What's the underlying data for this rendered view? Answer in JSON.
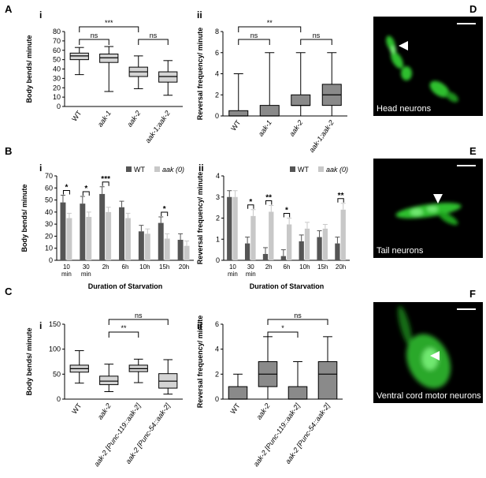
{
  "panels": {
    "A": "A",
    "B": "B",
    "C": "C",
    "D": "D",
    "E": "E",
    "F": "F",
    "i": "i",
    "ii": "ii"
  },
  "colors": {
    "wt": "#555555",
    "aak": "#c8c8c8",
    "box_light": "#d4d4d4",
    "box_dark": "#8a8a8a",
    "neuron": "#32c832"
  },
  "micro": {
    "D": {
      "label": "Head neurons"
    },
    "E": {
      "label": "Tail neurons"
    },
    "F": {
      "label": "Ventral cord motor neurons"
    }
  },
  "chart_data": [
    {
      "id": "Ai",
      "type": "box",
      "ylabel": "Body bends/ minute",
      "ylim": [
        0,
        80
      ],
      "yticks": [
        0,
        10,
        20,
        30,
        40,
        50,
        60,
        70,
        80
      ],
      "categories": [
        "WT",
        "aak-1",
        "aak-2",
        "aak-1;aak-2"
      ],
      "boxes": [
        {
          "min": 34,
          "q1": 50,
          "median": 54,
          "q3": 57,
          "max": 63
        },
        {
          "min": 16,
          "q1": 47,
          "median": 52,
          "q3": 56,
          "max": 64
        },
        {
          "min": 19,
          "q1": 32,
          "median": 37,
          "q3": 42,
          "max": 54
        },
        {
          "min": 12,
          "q1": 26,
          "median": 32,
          "q3": 37,
          "max": 49
        }
      ],
      "sig": [
        {
          "a": 0,
          "b": 1,
          "text": "ns"
        },
        {
          "a": 0,
          "b": 2,
          "text": "***"
        },
        {
          "a": 2,
          "b": 3,
          "text": "ns"
        }
      ]
    },
    {
      "id": "Aii",
      "type": "box",
      "ylabel": "Reversal frequency/ minute",
      "ylim": [
        0,
        8
      ],
      "yticks": [
        0,
        2,
        4,
        6,
        8
      ],
      "categories": [
        "WT",
        "aak-1",
        "aak-2",
        "aak-1;aak-2"
      ],
      "boxes": [
        {
          "min": 0,
          "q1": 0,
          "median": 0,
          "q3": 0.5,
          "max": 4
        },
        {
          "min": 0,
          "q1": 0,
          "median": 0,
          "q3": 1,
          "max": 6
        },
        {
          "min": 0,
          "q1": 1,
          "median": 1,
          "q3": 2,
          "max": 6
        },
        {
          "min": 0,
          "q1": 1,
          "median": 2,
          "q3": 3,
          "max": 6
        }
      ],
      "sig": [
        {
          "a": 0,
          "b": 1,
          "text": "ns"
        },
        {
          "a": 0,
          "b": 2,
          "text": "**"
        },
        {
          "a": 2,
          "b": 3,
          "text": "ns"
        }
      ]
    },
    {
      "id": "Bi",
      "type": "bar",
      "ylabel": "Body  bends/ minute",
      "xlabel": "Duration  of Starvation",
      "ylim": [
        0,
        70
      ],
      "yticks": [
        0,
        10,
        20,
        30,
        40,
        50,
        60,
        70
      ],
      "categories": [
        "10 min",
        "30 min",
        "2h",
        "6h",
        "10h",
        "15h",
        "20h"
      ],
      "series": [
        {
          "name": "WT",
          "values": [
            48,
            47,
            55,
            44,
            24,
            31,
            17
          ],
          "err": [
            6,
            6,
            6,
            5,
            5,
            5,
            5
          ]
        },
        {
          "name": "aak (0)",
          "values": [
            35,
            36,
            40,
            35,
            22,
            18,
            12
          ],
          "err": [
            4,
            4,
            4,
            4,
            4,
            4,
            4
          ]
        }
      ],
      "sig": [
        "*",
        "*",
        "***",
        "",
        "",
        "*",
        ""
      ]
    },
    {
      "id": "Bii",
      "type": "bar",
      "ylabel": "Reversal frequency/  minute",
      "xlabel": "Duration  of Starvation",
      "ylim": [
        0,
        4
      ],
      "yticks": [
        0,
        1,
        2,
        3,
        4
      ],
      "categories": [
        "10 min",
        "30 min",
        "2h",
        "6h",
        "10h",
        "15h",
        "20h"
      ],
      "series": [
        {
          "name": "WT",
          "values": [
            3.0,
            0.8,
            0.3,
            0.2,
            0.9,
            1.1,
            0.8
          ],
          "err": [
            0.3,
            0.3,
            0.3,
            0.3,
            0.3,
            0.3,
            0.3
          ]
        },
        {
          "name": "aak (0)",
          "values": [
            3.0,
            2.1,
            2.3,
            1.7,
            1.5,
            1.5,
            2.4
          ],
          "err": [
            0.3,
            0.3,
            0.3,
            0.3,
            0.3,
            0.2,
            0.3
          ]
        }
      ],
      "sig": [
        "",
        "*",
        "**",
        "*",
        "",
        "",
        "**"
      ]
    },
    {
      "id": "Ci",
      "type": "box",
      "ylabel": "Body bends/ minute",
      "ylim": [
        0,
        150
      ],
      "yticks": [
        0,
        50,
        100,
        150
      ],
      "categories": [
        "WT",
        "aak-2",
        "aak-2 [Punc-119::aak-2]",
        "aak-2 [Punc-54::aak-2]"
      ],
      "boxes": [
        {
          "min": 32,
          "q1": 54,
          "median": 61,
          "q3": 68,
          "max": 97
        },
        {
          "min": 15,
          "q1": 29,
          "median": 36,
          "q3": 46,
          "max": 70
        },
        {
          "min": 33,
          "q1": 55,
          "median": 61,
          "q3": 68,
          "max": 80
        },
        {
          "min": 10,
          "q1": 22,
          "median": 36,
          "q3": 51,
          "max": 79
        }
      ],
      "sig": [
        {
          "a": 1,
          "b": 2,
          "text": "**"
        },
        {
          "a": 1,
          "b": 3,
          "text": "ns"
        }
      ]
    },
    {
      "id": "Cii",
      "type": "box",
      "ylabel": "Reversal frequency/ minute",
      "ylim": [
        0,
        6
      ],
      "yticks": [
        0,
        2,
        4,
        6
      ],
      "categories": [
        "WT",
        "aak-2",
        "aak-2 [Punc-119::aak-2]",
        "aak-2 [Punc-54::aak-2]"
      ],
      "boxes": [
        {
          "min": 0,
          "q1": 0,
          "median": 0,
          "q3": 1,
          "max": 2
        },
        {
          "min": 0,
          "q1": 1,
          "median": 2,
          "q3": 3,
          "max": 5
        },
        {
          "min": 0,
          "q1": 0,
          "median": 0,
          "q3": 1,
          "max": 3
        },
        {
          "min": 0,
          "q1": 0,
          "median": 2,
          "q3": 3,
          "max": 5
        }
      ],
      "sig": [
        {
          "a": 1,
          "b": 2,
          "text": "*"
        },
        {
          "a": 1,
          "b": 3,
          "text": "ns"
        }
      ]
    }
  ]
}
